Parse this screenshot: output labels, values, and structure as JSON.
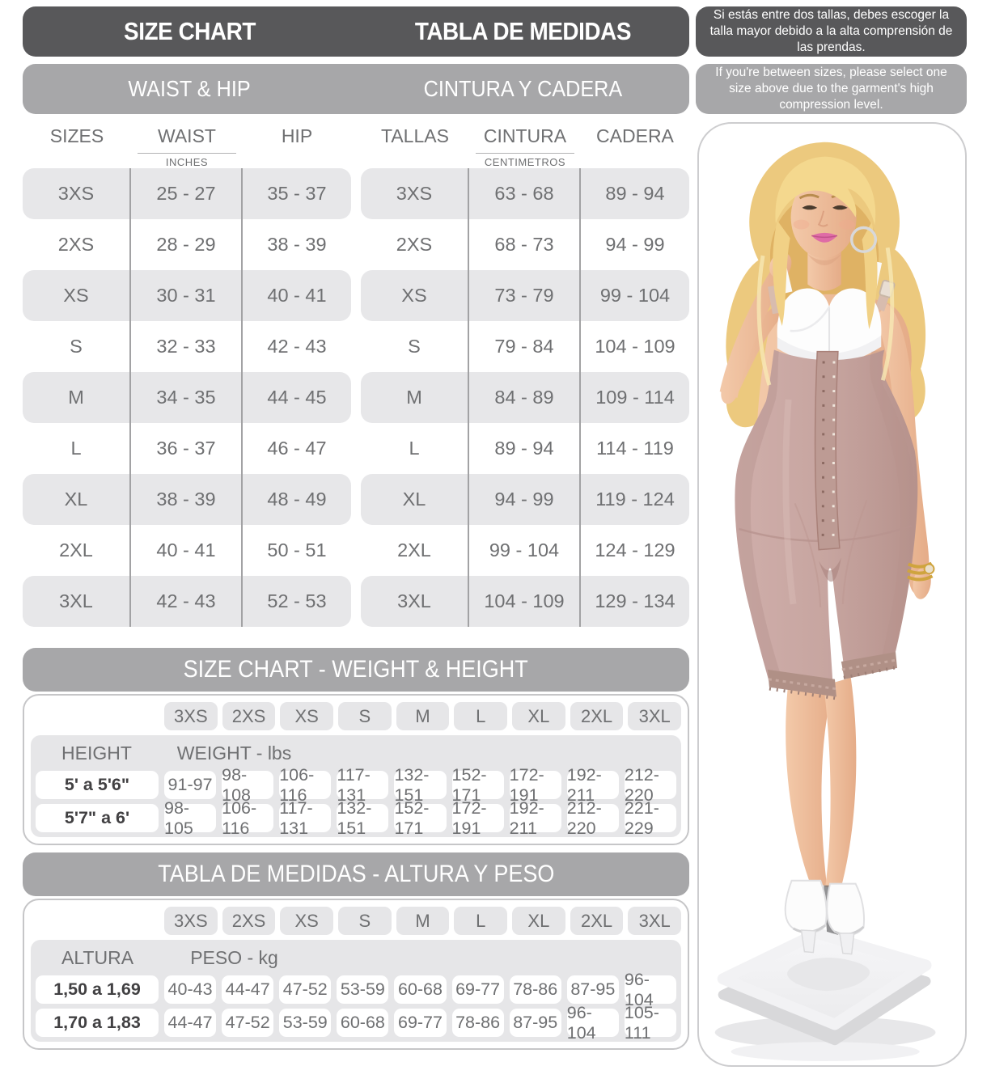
{
  "header": {
    "title_en": "SIZE CHART",
    "title_es": "TABLA DE MEDIDAS",
    "note_es": "Si estás entre dos tallas, debes escoger la talla mayor debido a la alta comprensión de las prendas.",
    "subtitle_en": "WAIST & HIP",
    "subtitle_es": "CINTURA Y CADERA",
    "note_en": "If you're between sizes, please select one size above due to the garment's high compression level."
  },
  "waist_hip": {
    "tables": [
      {
        "id": "inches",
        "size_header": "SIZES",
        "col2_header": "WAIST",
        "col3_header": "HIP",
        "unit": "INCHES",
        "rows": [
          [
            "3XS",
            "25 - 27",
            "35 - 37"
          ],
          [
            "2XS",
            "28 - 29",
            "38 - 39"
          ],
          [
            "XS",
            "30 - 31",
            "40 - 41"
          ],
          [
            "S",
            "32 - 33",
            "42 - 43"
          ],
          [
            "M",
            "34 - 35",
            "44 - 45"
          ],
          [
            "L",
            "36 - 37",
            "46 - 47"
          ],
          [
            "XL",
            "38 - 39",
            "48 - 49"
          ],
          [
            "2XL",
            "40 - 41",
            "50 - 51"
          ],
          [
            "3XL",
            "42 - 43",
            "52 - 53"
          ]
        ]
      },
      {
        "id": "centimeters",
        "size_header": "TALLAS",
        "col2_header": "CINTURA",
        "col3_header": "CADERA",
        "unit": "CENTIMETROS",
        "rows": [
          [
            "3XS",
            "63 - 68",
            "89 - 94"
          ],
          [
            "2XS",
            "68 - 73",
            "94 - 99"
          ],
          [
            "XS",
            "73 - 79",
            "99 - 104"
          ],
          [
            "S",
            "79 - 84",
            "104 - 109"
          ],
          [
            "M",
            "84 - 89",
            "109 - 114"
          ],
          [
            "L",
            "89 - 94",
            "114 - 119"
          ],
          [
            "XL",
            "94 - 99",
            "119 - 124"
          ],
          [
            "2XL",
            "99 - 104",
            "124 - 129"
          ],
          [
            "3XL",
            "104 - 109",
            "129 - 134"
          ]
        ]
      }
    ]
  },
  "weight_tables": [
    {
      "id": "lbs",
      "title": "SIZE CHART - WEIGHT & HEIGHT",
      "sizes": [
        "3XS",
        "2XS",
        "XS",
        "S",
        "M",
        "L",
        "XL",
        "2XL",
        "3XL"
      ],
      "height_label": "HEIGHT",
      "weight_label": "WEIGHT - lbs",
      "rows": [
        {
          "label": "5' a 5'6\"",
          "values": [
            "91-97",
            "98-108",
            "106-116",
            "117-131",
            "132-151",
            "152-171",
            "172-191",
            "192-211",
            "212-220"
          ]
        },
        {
          "label": "5'7\" a 6'",
          "values": [
            "98-105",
            "106-116",
            "117-131",
            "132-151",
            "152-171",
            "172-191",
            "192-211",
            "212-220",
            "221-229"
          ]
        }
      ]
    },
    {
      "id": "kg",
      "title": "TABLA DE MEDIDAS - ALTURA Y PESO",
      "sizes": [
        "3XS",
        "2XS",
        "XS",
        "S",
        "M",
        "L",
        "XL",
        "2XL",
        "3XL"
      ],
      "height_label": "ALTURA",
      "weight_label": "PESO - kg",
      "rows": [
        {
          "label": "1,50 a 1,69",
          "values": [
            "40-43",
            "44-47",
            "47-52",
            "53-59",
            "60-68",
            "69-77",
            "78-86",
            "87-95",
            "96-104"
          ]
        },
        {
          "label": "1,70 a 1,83",
          "values": [
            "44-47",
            "47-52",
            "53-59",
            "60-68",
            "69-77",
            "78-86",
            "87-95",
            "96-104",
            "105-111"
          ]
        }
      ]
    }
  ],
  "model_photo": {
    "description": "Blonde model wearing white bra and knee-length mauve compression shapewear with front hook closure, standing on a white scale"
  },
  "colors": {
    "dark_bar": "#58585a",
    "gray_bar": "#a7a7a9",
    "row_gray": "#e7e7e9",
    "text_gray": "#6f7072",
    "text_dark": "#414042",
    "divider_line": "#a2a2a4",
    "panel_border": "#c6c6c8",
    "garment": "#c7a5a0",
    "garment_shadow": "#b5918b",
    "hook_strip": "#bd9b94",
    "skin": "#f0c2a2",
    "hair": "#ecc97e"
  }
}
